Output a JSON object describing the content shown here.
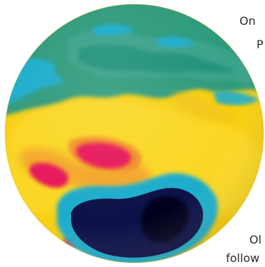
{
  "text_fragments": {
    "line1": "On",
    "line2": "P",
    "line3": "Ol",
    "line4": "follow"
  },
  "globe": {
    "icon": "globe-icon",
    "colors": {
      "land_green": "#2f9a7c",
      "cyan": "#1aaccc",
      "yellow": "#f9d400",
      "orange": "#f3a12a",
      "magenta": "#e6185a",
      "navy": "#0b1048",
      "black": "#05051a"
    }
  }
}
